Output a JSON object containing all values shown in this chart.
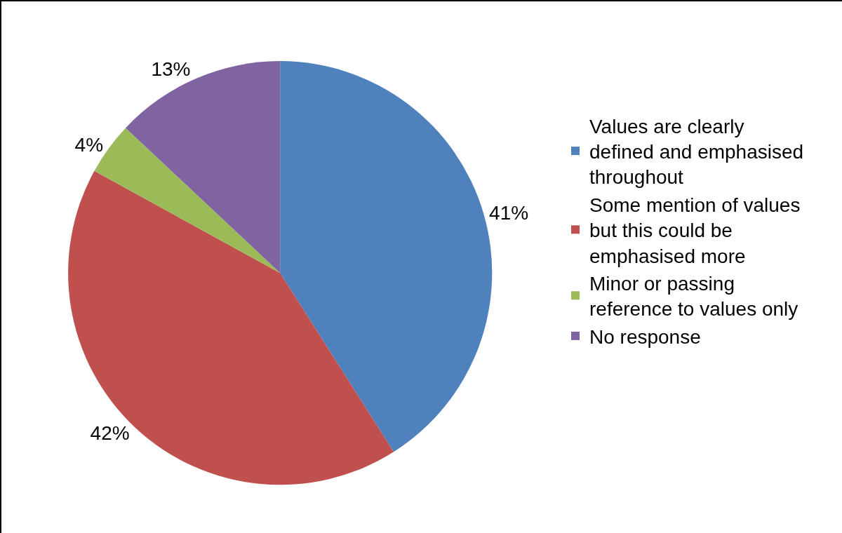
{
  "chart_data": {
    "type": "pie",
    "categories": [
      "Values are clearly defined and emphasised throughout",
      "Some mention of values but this could be emphasised more",
      "Minor or passing reference to values only",
      "No response"
    ],
    "values": [
      41,
      42,
      4,
      13
    ],
    "value_labels": [
      "41%",
      "42%",
      "4%",
      "13%"
    ],
    "colors": [
      "#4f81bd",
      "#c0504d",
      "#9bbb59",
      "#8064a2"
    ],
    "legend": "right"
  }
}
